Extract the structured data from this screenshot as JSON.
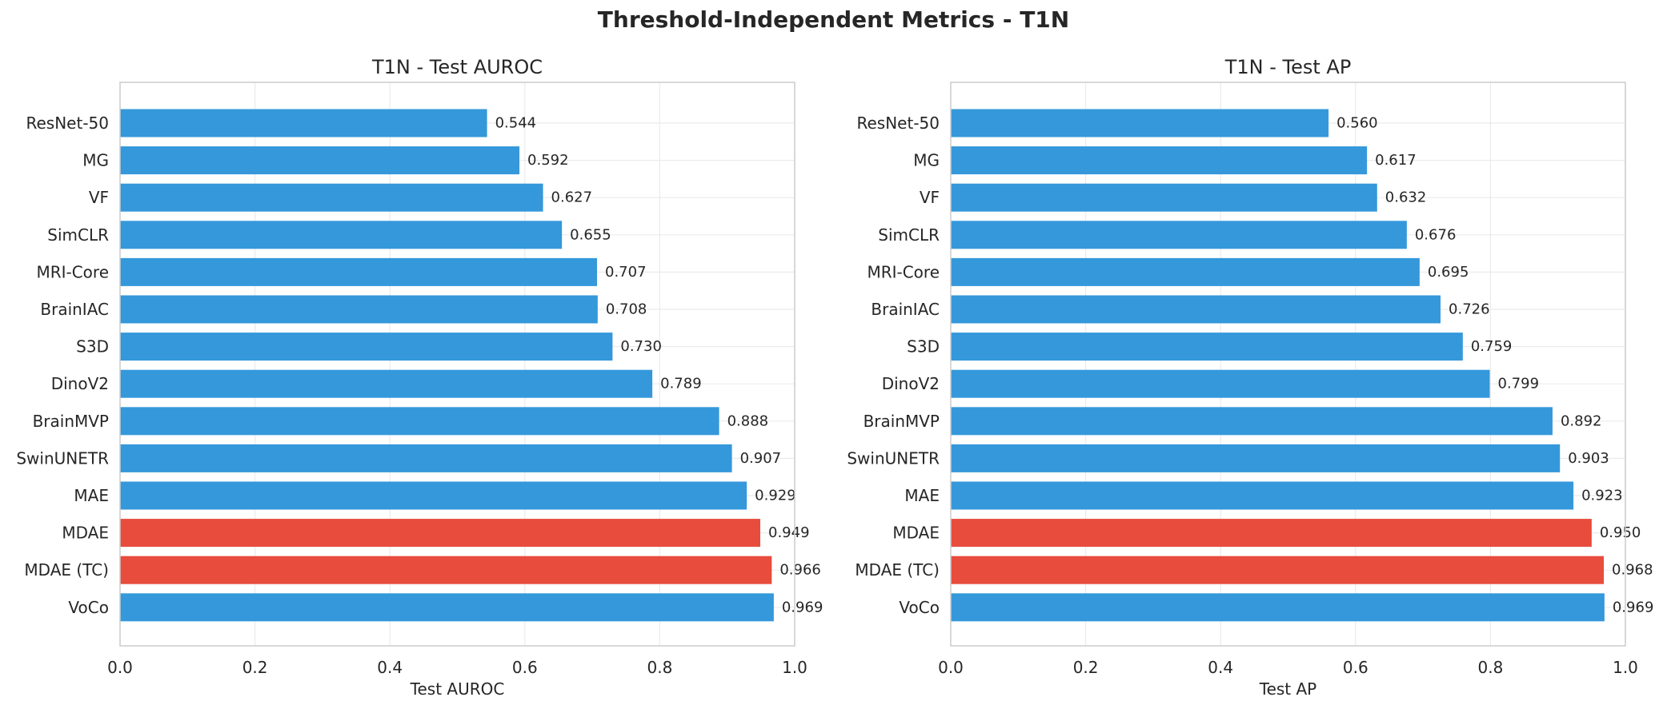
{
  "suptitle": "Threshold-Independent Metrics - T1N",
  "colors": {
    "default_bar": "#3498db",
    "highlight_bar": "#e74c3c",
    "grid": "#ebebeb",
    "spine": "#cccccc",
    "text": "#262626"
  },
  "chart_data": [
    {
      "type": "bar",
      "orientation": "horizontal",
      "title": "T1N - Test AUROC",
      "xlabel": "Test AUROC",
      "ylabel": "",
      "xlim": [
        0,
        1.0
      ],
      "xticks": [
        "0.0",
        "0.2",
        "0.4",
        "0.6",
        "0.8",
        "1.0"
      ],
      "grid": true,
      "categories": [
        "ResNet-50",
        "MG",
        "VF",
        "SimCLR",
        "MRI-Core",
        "BrainIAC",
        "S3D",
        "DinoV2",
        "BrainMVP",
        "SwinUNETR",
        "MAE",
        "MDAE",
        "MDAE (TC)",
        "VoCo"
      ],
      "values": [
        0.544,
        0.592,
        0.627,
        0.655,
        0.707,
        0.708,
        0.73,
        0.789,
        0.888,
        0.907,
        0.929,
        0.949,
        0.966,
        0.969
      ],
      "value_labels": [
        "0.544",
        "0.592",
        "0.627",
        "0.655",
        "0.707",
        "0.708",
        "0.730",
        "0.789",
        "0.888",
        "0.907",
        "0.929",
        "0.949",
        "0.966",
        "0.969"
      ],
      "highlighted": [
        "MDAE",
        "MDAE (TC)"
      ]
    },
    {
      "type": "bar",
      "orientation": "horizontal",
      "title": "T1N - Test AP",
      "xlabel": "Test AP",
      "ylabel": "",
      "xlim": [
        0,
        1.0
      ],
      "xticks": [
        "0.0",
        "0.2",
        "0.4",
        "0.6",
        "0.8",
        "1.0"
      ],
      "grid": true,
      "categories": [
        "ResNet-50",
        "MG",
        "VF",
        "SimCLR",
        "MRI-Core",
        "BrainIAC",
        "S3D",
        "DinoV2",
        "BrainMVP",
        "SwinUNETR",
        "MAE",
        "MDAE",
        "MDAE (TC)",
        "VoCo"
      ],
      "values": [
        0.56,
        0.617,
        0.632,
        0.676,
        0.695,
        0.726,
        0.759,
        0.799,
        0.892,
        0.903,
        0.923,
        0.95,
        0.968,
        0.969
      ],
      "value_labels": [
        "0.560",
        "0.617",
        "0.632",
        "0.676",
        "0.695",
        "0.726",
        "0.759",
        "0.799",
        "0.892",
        "0.903",
        "0.923",
        "0.950",
        "0.968",
        "0.969"
      ],
      "highlighted": [
        "MDAE",
        "MDAE (TC)"
      ]
    }
  ]
}
